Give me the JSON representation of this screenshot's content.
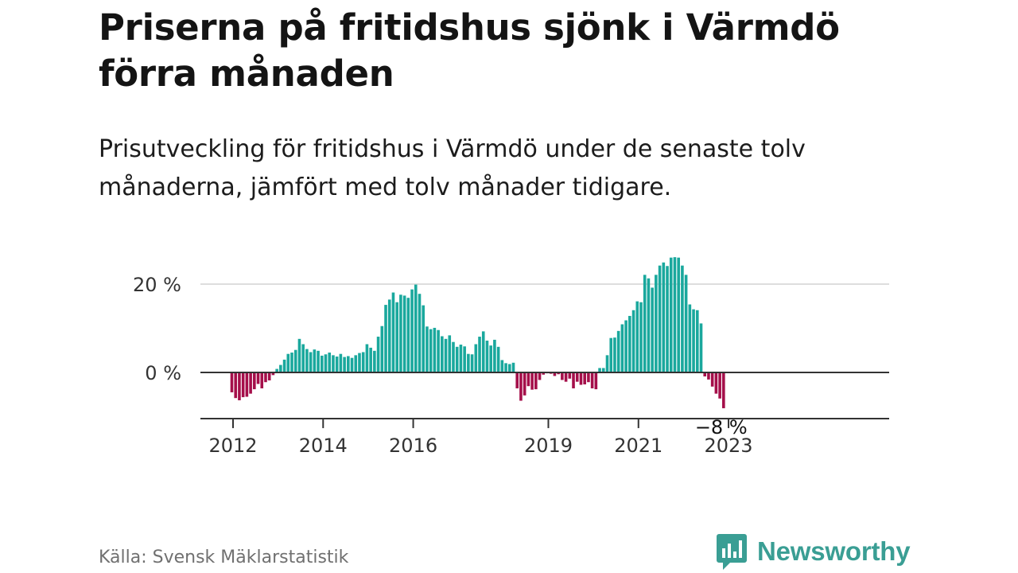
{
  "title": "Priserna på fritidshus sjönk i Värmdö förra månaden",
  "subtitle": "Prisutveckling för fritidshus i Värmdö under de senaste tolv månaderna, jämfört med tolv månader tidigare.",
  "source": "Källa: Svensk Mäklarstatistik",
  "brand": {
    "name": "Newsworthy",
    "icon": "newsworthy-logo-icon"
  },
  "colors": {
    "positive": "#1aa89d",
    "negative": "#a50f4a",
    "baseline": "#333333",
    "grid": "#dddddd"
  },
  "chart_data": {
    "type": "bar",
    "unit": "%",
    "ylim": [
      -9,
      26
    ],
    "yticks": [
      {
        "value": 0,
        "label": "0 %"
      },
      {
        "value": 20,
        "label": "20 %"
      }
    ],
    "xticks": [
      {
        "value": 2012,
        "label": "2012"
      },
      {
        "value": 2014,
        "label": "2014"
      },
      {
        "value": 2016,
        "label": "2016"
      },
      {
        "value": 2019,
        "label": "2019"
      },
      {
        "value": 2021,
        "label": "2021"
      },
      {
        "value": 2023,
        "label": "2023"
      }
    ],
    "last_value_label": "−8 %",
    "grid": "horizontal",
    "series": [
      {
        "year": 2012,
        "values": [
          -4.5,
          -5.8,
          -6.3,
          -5.6,
          -5.5,
          -4.8,
          -3.8,
          -2.6,
          -3.6,
          -2.2,
          -1.8,
          -0.6
        ]
      },
      {
        "year": 2013,
        "values": [
          0.8,
          1.7,
          2.9,
          4.2,
          4.5,
          5.1,
          7.6,
          6.4,
          5.3,
          4.6,
          5.2,
          4.9
        ]
      },
      {
        "year": 2014,
        "values": [
          3.8,
          4.1,
          4.5,
          3.9,
          3.6,
          4.2,
          3.5,
          3.7,
          3.3,
          3.9,
          4.4,
          4.6
        ]
      },
      {
        "year": 2015,
        "values": [
          6.4,
          5.6,
          4.9,
          8.1,
          10.5,
          15.3,
          16.5,
          18.1,
          15.9,
          17.6,
          17.4,
          16.9
        ]
      },
      {
        "year": 2016,
        "values": [
          18.8,
          19.9,
          17.8,
          15.2,
          10.4,
          9.8,
          10.1,
          9.6,
          8.2,
          7.6,
          8.4,
          6.9
        ]
      },
      {
        "year": 2017,
        "values": [
          5.8,
          6.3,
          5.9,
          4.2,
          4.1,
          6.4,
          8.1,
          9.3,
          7.2,
          6.1,
          7.4,
          5.8
        ]
      },
      {
        "year": 2018,
        "values": [
          2.8,
          2.1,
          1.9,
          2.2,
          -3.6,
          -6.4,
          -5.2,
          -3.1,
          -3.9,
          -3.8,
          -1.7,
          -0.5
        ]
      },
      {
        "year": 2019,
        "values": [
          -0.2,
          -0.3,
          -0.8,
          -0.4,
          -1.7,
          -2.1,
          -1.4,
          -3.6,
          -2.1,
          -2.8,
          -2.7,
          -2.2
        ]
      },
      {
        "year": 2020,
        "values": [
          -3.6,
          -3.8,
          1.0,
          1.0,
          3.9,
          7.8,
          7.9,
          9.4,
          10.9,
          11.8,
          12.8,
          14.1
        ]
      },
      {
        "year": 2021,
        "values": [
          16.1,
          15.9,
          22.1,
          21.3,
          19.2,
          22.1,
          24.2,
          24.9,
          24.1,
          26.0,
          26.1,
          26.0
        ]
      },
      {
        "year": 2022,
        "values": [
          24.2,
          22.1,
          15.4,
          14.3,
          14.1,
          11.1,
          -0.9,
          -1.6,
          -3.2,
          -4.8,
          -5.9,
          -8.1
        ]
      }
    ]
  }
}
